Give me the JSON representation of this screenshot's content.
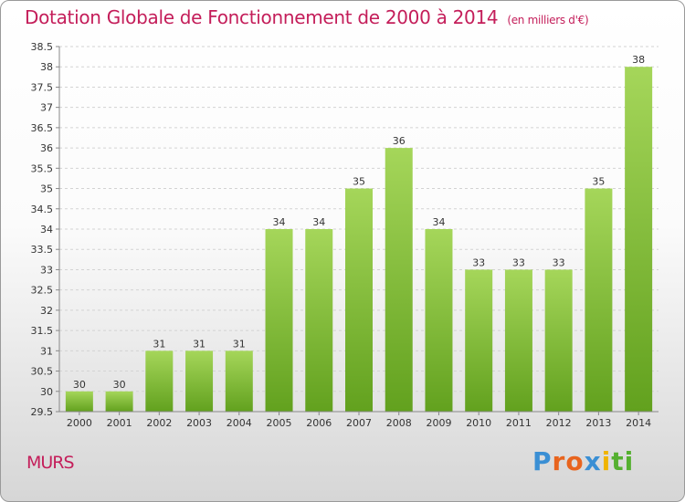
{
  "header": {
    "title": "Dotation Globale de Fonctionnement de 2000 à 2014",
    "unit_note": "(en milliers d'€)"
  },
  "footer": {
    "commune": "MURS",
    "logo_letters": [
      "P",
      "r",
      "o",
      "x",
      "i",
      "t",
      "i"
    ],
    "logo_colors": [
      "#3a8fd4",
      "#e8641e",
      "#e8641e",
      "#3a8fd4",
      "#f0b400",
      "#55b030",
      "#55b030"
    ]
  },
  "chart_data": {
    "type": "bar",
    "title": "Dotation Globale de Fonctionnement de 2000 à 2014",
    "xlabel": "",
    "ylabel": "",
    "categories": [
      "2000",
      "2001",
      "2002",
      "2003",
      "2004",
      "2005",
      "2006",
      "2007",
      "2008",
      "2009",
      "2010",
      "2011",
      "2012",
      "2013",
      "2014"
    ],
    "values": [
      30,
      30,
      31,
      31,
      31,
      34,
      34,
      35,
      36,
      34,
      33,
      33,
      33,
      35,
      38
    ],
    "ylim": [
      29.5,
      38.5
    ],
    "yticks": [
      "29.5",
      "30",
      "30.5",
      "31",
      "31.5",
      "32",
      "32.5",
      "33",
      "33.5",
      "34",
      "34.5",
      "35",
      "35.5",
      "36",
      "36.5",
      "37",
      "37.5",
      "38",
      "38.5"
    ],
    "bar_color_top": "#a5d65a",
    "bar_color_bottom": "#62a11e",
    "grid": true,
    "legend": "none"
  }
}
